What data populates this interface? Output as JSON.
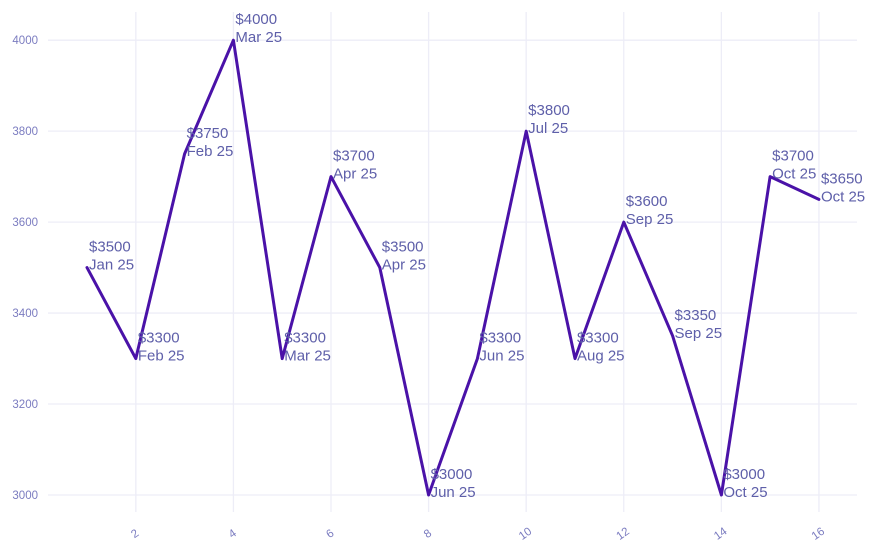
{
  "chart_data": {
    "type": "line",
    "title": "",
    "xlabel": "",
    "ylabel": "",
    "x": [
      1,
      2,
      3,
      4,
      5,
      6,
      7,
      8,
      9,
      10,
      11,
      12,
      13,
      14,
      15,
      16
    ],
    "values": [
      3500,
      3300,
      3750,
      4000,
      3300,
      3700,
      3500,
      3000,
      3300,
      3800,
      3300,
      3600,
      3350,
      3000,
      3700,
      3650
    ],
    "value_labels": [
      "$3500",
      "$3300",
      "$3750",
      "$4000",
      "$3300",
      "$3700",
      "$3500",
      "$3000",
      "$3300",
      "$3800",
      "$3300",
      "$3600",
      "$3350",
      "$3000",
      "$3700",
      "$3650"
    ],
    "period_labels": [
      "Jan 25",
      "Feb 25",
      "Feb 25",
      "Mar 25",
      "Mar 25",
      "Apr 25",
      "Apr 25",
      "Jun 25",
      "Jun 25",
      "Jul 25",
      "Aug 25",
      "Sep 25",
      "Sep 25",
      "Oct 25",
      "Oct 25",
      "Oct 25"
    ],
    "x_ticks": [
      2,
      4,
      6,
      8,
      10,
      12,
      14,
      16
    ],
    "y_ticks": [
      3000,
      3200,
      3400,
      3600,
      3800,
      4000
    ],
    "xlim": [
      0.2,
      16.78
    ],
    "ylim": [
      2967,
      4062
    ],
    "grid": true,
    "legend": "none",
    "colors": {
      "line": "#4a12a8",
      "point_label": "#5e5fa9",
      "axis_label": "#7b7cc0",
      "grid": "#ededf7",
      "background": "#ffffff"
    }
  }
}
